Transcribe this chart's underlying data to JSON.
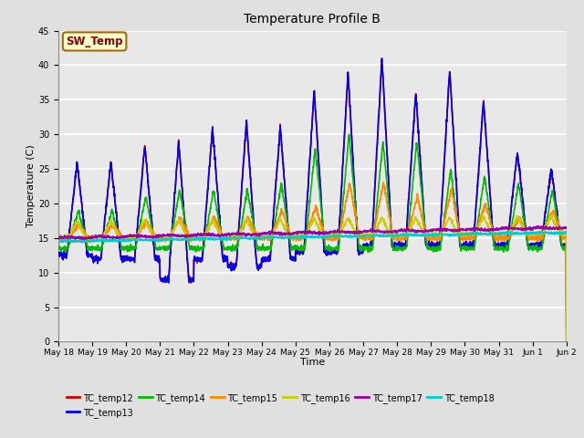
{
  "title": "Temperature Profile B",
  "xlabel": "Time",
  "ylabel": "Temperature (C)",
  "ylim": [
    0,
    45
  ],
  "yticks": [
    0,
    5,
    10,
    15,
    20,
    25,
    30,
    35,
    40,
    45
  ],
  "background_color": "#e0e0e0",
  "plot_bg_color": "#e8e8e8",
  "grid_color": "#ffffff",
  "annotation_text": "SW_Temp",
  "annotation_bg": "#ffffcc",
  "annotation_border": "#aa6600",
  "annotation_text_color": "#880000",
  "series": {
    "TC_temp12": {
      "color": "#cc0000",
      "lw": 1.2
    },
    "TC_temp13": {
      "color": "#0000ee",
      "lw": 1.2
    },
    "TC_temp14": {
      "color": "#00bb00",
      "lw": 1.2
    },
    "TC_temp15": {
      "color": "#ff8800",
      "lw": 1.2
    },
    "TC_temp16": {
      "color": "#cccc00",
      "lw": 1.2
    },
    "TC_temp17": {
      "color": "#9900aa",
      "lw": 1.2
    },
    "TC_temp18": {
      "color": "#00cccc",
      "lw": 1.2
    }
  },
  "xtick_labels": [
    "May 18",
    "May 19",
    "May 20",
    "May 21",
    "May 22",
    "May 23",
    "May 24",
    "May 25",
    "May 26",
    "May 27",
    "May 28",
    "May 29",
    "May 30",
    "May 31",
    "Jun 1",
    "Jun 2"
  ],
  "xtick_positions": [
    0,
    1,
    2,
    3,
    4,
    5,
    6,
    7,
    8,
    9,
    10,
    11,
    12,
    13,
    14,
    15
  ],
  "peaks12": [
    26,
    26,
    28.5,
    29,
    31,
    32,
    31,
    36.5,
    39,
    41,
    36,
    39.5,
    35,
    27.5,
    25
  ],
  "peaks14": [
    19,
    19,
    21,
    22,
    22,
    22,
    23,
    28,
    30,
    29,
    29,
    25,
    24,
    23,
    22
  ],
  "peaks15": [
    17,
    17,
    17.5,
    18,
    18,
    18,
    19,
    19.5,
    23,
    23,
    21,
    22,
    20,
    18,
    19
  ],
  "night_min12": [
    12.5,
    12,
    12,
    9,
    12,
    11,
    12,
    13,
    13,
    14,
    14,
    14,
    14,
    14,
    14
  ],
  "n_days": 15,
  "pts_per_day": 144
}
